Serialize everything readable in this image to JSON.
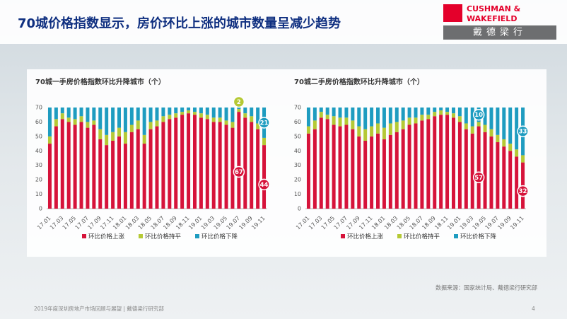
{
  "header": {
    "title": "70城价格指数显示，房价环比上涨的城市数量呈减少趋势",
    "logo_line1": "CUSHMAN &",
    "logo_line2": "WAKEFIELD",
    "logo_cn": "戴德梁行"
  },
  "source": "数据来源：国家统计局、戴德梁行研究部",
  "footer": {
    "text": "2019年度深圳房地产市场回顾与展望 | 戴德梁行研究部",
    "page": "4"
  },
  "chart_data": [
    {
      "type": "stacked-bar",
      "title": "70城一手房价格指数环比升降城市（个）",
      "categories": [
        "17.01",
        null,
        "17.03",
        null,
        "17.05",
        null,
        "17.07",
        null,
        "17.09",
        null,
        "17.11",
        null,
        "18.01",
        null,
        "18.03",
        null,
        "18.05",
        null,
        "18.07",
        null,
        "18.09",
        null,
        "18.11",
        null,
        "19.01",
        null,
        "19.03",
        null,
        "19.05",
        null,
        "19.07",
        null,
        "19.09",
        null,
        "19.11"
      ],
      "series": [
        {
          "name": "环比价格上涨",
          "color": "#d6133a",
          "values": [
            45,
            57,
            62,
            60,
            58,
            60,
            56,
            58,
            48,
            44,
            47,
            50,
            45,
            53,
            55,
            45,
            55,
            57,
            60,
            62,
            63,
            65,
            66,
            65,
            63,
            62,
            60,
            60,
            58,
            56,
            67,
            63,
            60,
            55,
            44
          ]
        },
        {
          "name": "环比价格持平",
          "color": "#b5c935",
          "values": [
            5,
            5,
            4,
            3,
            4,
            4,
            4,
            3,
            7,
            7,
            6,
            6,
            8,
            5,
            6,
            6,
            5,
            4,
            4,
            3,
            3,
            2,
            2,
            2,
            3,
            3,
            3,
            3,
            3,
            4,
            2,
            3,
            4,
            4,
            5
          ]
        },
        {
          "name": "环比价格下降",
          "color": "#1e9cc0",
          "values": [
            20,
            8,
            4,
            7,
            8,
            6,
            10,
            9,
            15,
            19,
            17,
            14,
            17,
            12,
            9,
            19,
            10,
            9,
            6,
            5,
            4,
            3,
            2,
            3,
            4,
            5,
            7,
            7,
            9,
            10,
            1,
            4,
            6,
            11,
            21
          ]
        }
      ],
      "data_labels": [
        {
          "series": 1,
          "index": 30
        },
        {
          "series": 0,
          "index": 30
        },
        {
          "series": 2,
          "index": 34
        },
        {
          "series": 0,
          "index": 34
        }
      ],
      "ylim": [
        0,
        70
      ],
      "yticks": [
        0,
        10,
        20,
        30,
        40,
        50,
        60,
        70
      ],
      "grid": false,
      "legend": "bottom"
    },
    {
      "type": "stacked-bar",
      "title": "70城二手房价格指数环比升降城市（个）",
      "categories": [
        "17.01",
        null,
        "17.03",
        null,
        "17.05",
        null,
        "17.07",
        null,
        "17.09",
        null,
        "17.11",
        null,
        "18.01",
        null,
        "18.03",
        null,
        "18.05",
        null,
        "18.07",
        null,
        "18.09",
        null,
        "18.11",
        null,
        "19.01",
        null,
        "19.03",
        null,
        "19.05",
        null,
        "19.07",
        null,
        "19.09",
        null,
        "19.11"
      ],
      "series": [
        {
          "name": "环比价格上涨",
          "color": "#d6133a",
          "values": [
            52,
            55,
            63,
            62,
            58,
            57,
            58,
            55,
            50,
            47,
            50,
            52,
            48,
            51,
            53,
            55,
            58,
            59,
            61,
            62,
            64,
            65,
            65,
            63,
            60,
            55,
            52,
            57,
            53,
            50,
            46,
            43,
            40,
            36,
            32
          ]
        },
        {
          "name": "环比价格持平",
          "color": "#b5c935",
          "values": [
            5,
            6,
            4,
            3,
            6,
            6,
            5,
            6,
            7,
            8,
            7,
            7,
            8,
            8,
            7,
            6,
            5,
            4,
            4,
            3,
            3,
            3,
            2,
            3,
            4,
            4,
            5,
            3,
            5,
            5,
            5,
            5,
            5,
            5,
            5
          ]
        },
        {
          "name": "环比价格下降",
          "color": "#1e9cc0",
          "values": [
            13,
            9,
            3,
            5,
            6,
            7,
            7,
            9,
            13,
            15,
            13,
            11,
            14,
            11,
            10,
            9,
            7,
            7,
            5,
            5,
            3,
            2,
            3,
            4,
            6,
            11,
            13,
            10,
            12,
            15,
            19,
            22,
            25,
            29,
            33
          ]
        }
      ],
      "data_labels": [
        {
          "series": 2,
          "index": 27
        },
        {
          "series": 0,
          "index": 27
        },
        {
          "series": 2,
          "index": 34
        },
        {
          "series": 0,
          "index": 34
        }
      ],
      "ylim": [
        0,
        70
      ],
      "yticks": [
        0,
        10,
        20,
        30,
        40,
        50,
        60,
        70
      ],
      "grid": false,
      "legend": "bottom"
    }
  ]
}
